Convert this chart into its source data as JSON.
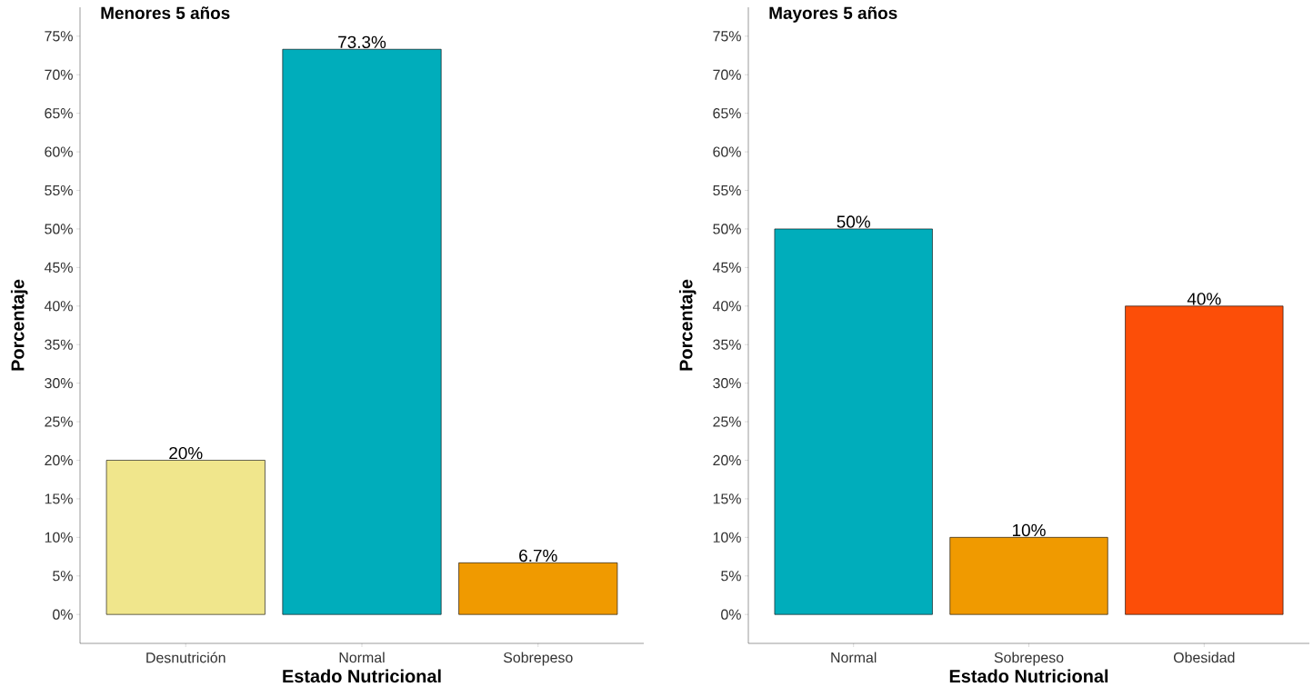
{
  "chart_data": [
    {
      "type": "bar",
      "title": "Menores 5 años",
      "xlabel": "Estado Nutricional",
      "ylabel": "Porcentaje",
      "categories": [
        "Desnutrición",
        "Normal",
        "Sobrepeso"
      ],
      "values": [
        20,
        73.3,
        6.7
      ],
      "colors": [
        "#f0e68c",
        "#00adbb",
        "#f09a00"
      ],
      "value_labels": [
        "20%",
        "73.3%",
        "6.7%"
      ],
      "ylim": [
        -3.75,
        78.75
      ],
      "yticks": [
        {
          "value": 0,
          "label": "0%"
        },
        {
          "value": 5,
          "label": "5%"
        },
        {
          "value": 10,
          "label": "10%"
        },
        {
          "value": 15,
          "label": "15%"
        },
        {
          "value": 20,
          "label": "20%"
        },
        {
          "value": 25,
          "label": "25%"
        },
        {
          "value": 30,
          "label": "30%"
        },
        {
          "value": 35,
          "label": "35%"
        },
        {
          "value": 40,
          "label": "40%"
        },
        {
          "value": 45,
          "label": "45%"
        },
        {
          "value": 50,
          "label": "50%"
        },
        {
          "value": 55,
          "label": "55%"
        },
        {
          "value": 60,
          "label": "60%"
        },
        {
          "value": 65,
          "label": "65%"
        },
        {
          "value": 70,
          "label": "70%"
        },
        {
          "value": 75,
          "label": "75%"
        }
      ]
    },
    {
      "type": "bar",
      "title": "Mayores 5 años",
      "xlabel": "Estado Nutricional",
      "ylabel": "Porcentaje",
      "categories": [
        "Normal",
        "Sobrepeso",
        "Obesidad"
      ],
      "values": [
        50,
        10,
        40
      ],
      "colors": [
        "#00adbb",
        "#f09a00",
        "#fc4e08"
      ],
      "value_labels": [
        "50%",
        "10%",
        "40%"
      ],
      "ylim": [
        -3.75,
        78.75
      ],
      "yticks": [
        {
          "value": 0,
          "label": "0%"
        },
        {
          "value": 5,
          "label": "5%"
        },
        {
          "value": 10,
          "label": "10%"
        },
        {
          "value": 15,
          "label": "15%"
        },
        {
          "value": 20,
          "label": "20%"
        },
        {
          "value": 25,
          "label": "25%"
        },
        {
          "value": 30,
          "label": "30%"
        },
        {
          "value": 35,
          "label": "35%"
        },
        {
          "value": 40,
          "label": "40%"
        },
        {
          "value": 45,
          "label": "45%"
        },
        {
          "value": 50,
          "label": "50%"
        },
        {
          "value": 55,
          "label": "55%"
        },
        {
          "value": 60,
          "label": "60%"
        },
        {
          "value": 65,
          "label": "65%"
        },
        {
          "value": 70,
          "label": "70%"
        },
        {
          "value": 75,
          "label": "75%"
        }
      ]
    }
  ]
}
